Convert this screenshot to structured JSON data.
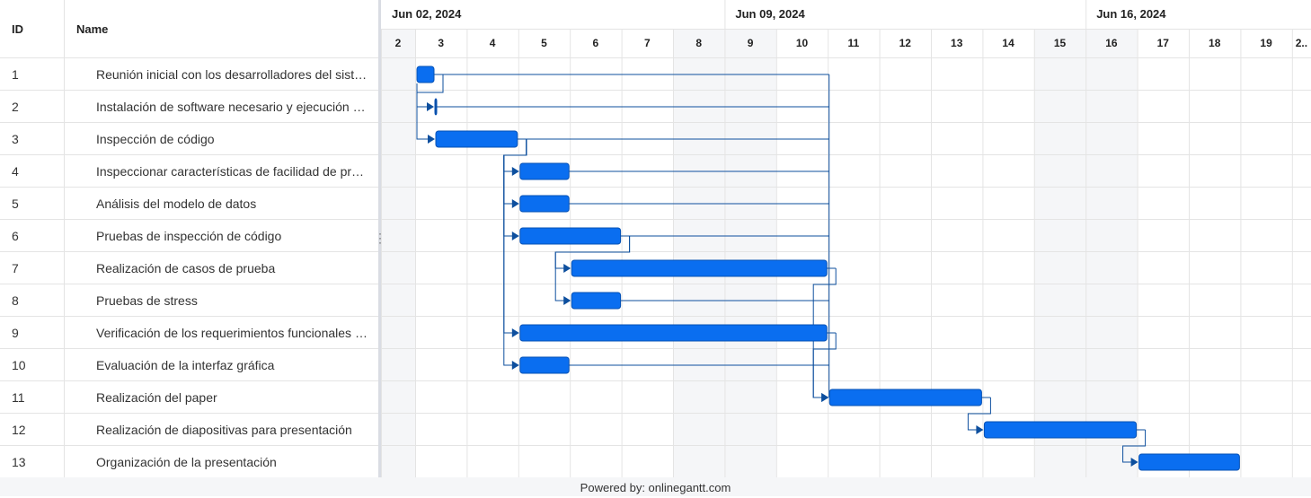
{
  "columns": {
    "id_header": "ID",
    "name_header": "Name"
  },
  "months": [
    {
      "label": "Jun 02, 2024",
      "start_day": 2
    },
    {
      "label": "Jun 09, 2024",
      "start_day": 9
    },
    {
      "label": "Jun 16, 2024",
      "start_day": 16
    }
  ],
  "days": [
    "2",
    "3",
    "4",
    "5",
    "6",
    "7",
    "8",
    "9",
    "10",
    "11",
    "12",
    "13",
    "14",
    "15",
    "16",
    "17",
    "18",
    "19",
    "2.."
  ],
  "weekend_days": [
    2,
    8,
    9,
    15,
    16
  ],
  "tasks": [
    {
      "id": "1",
      "name": "Reunión inicial con los desarrolladores del sistema",
      "start": "2024-06-03",
      "end": "2024-06-03"
    },
    {
      "id": "2",
      "name": "Instalación de software necesario y ejecución del sistema",
      "start": "2024-06-03",
      "end": "2024-06-03"
    },
    {
      "id": "3",
      "name": "Inspección de código",
      "start": "2024-06-03",
      "end": "2024-06-04"
    },
    {
      "id": "4",
      "name": "Inspeccionar características de facilidad de programación",
      "start": "2024-06-05",
      "end": "2024-06-05"
    },
    {
      "id": "5",
      "name": "Análisis del modelo de datos",
      "start": "2024-06-05",
      "end": "2024-06-05"
    },
    {
      "id": "6",
      "name": "Pruebas de inspección de código",
      "start": "2024-06-05",
      "end": "2024-06-06"
    },
    {
      "id": "7",
      "name": "Realización de casos de prueba",
      "start": "2024-06-06",
      "end": "2024-06-10"
    },
    {
      "id": "8",
      "name": "Pruebas de stress",
      "start": "2024-06-06",
      "end": "2024-06-06"
    },
    {
      "id": "9",
      "name": "Verificación de los requerimientos funcionales del sistema",
      "start": "2024-06-05",
      "end": "2024-06-10"
    },
    {
      "id": "10",
      "name": "Evaluación de la interfaz gráfica",
      "start": "2024-06-05",
      "end": "2024-06-05"
    },
    {
      "id": "11",
      "name": "Realización del paper",
      "start": "2024-06-11",
      "end": "2024-06-13"
    },
    {
      "id": "12",
      "name": "Realización de diapositivas para presentación",
      "start": "2024-06-14",
      "end": "2024-06-16"
    },
    {
      "id": "13",
      "name": "Organización de la presentación",
      "start": "2024-06-17",
      "end": "2024-06-18"
    }
  ],
  "dependencies": [
    {
      "from": "1",
      "to": "2"
    },
    {
      "from": "1",
      "to": "3"
    },
    {
      "from": "3",
      "to": "4"
    },
    {
      "from": "3",
      "to": "5"
    },
    {
      "from": "3",
      "to": "6"
    },
    {
      "from": "3",
      "to": "9"
    },
    {
      "from": "3",
      "to": "10"
    },
    {
      "from": "6",
      "to": "7"
    },
    {
      "from": "6",
      "to": "8"
    },
    {
      "from": "7",
      "to": "11"
    },
    {
      "from": "9",
      "to": "11"
    },
    {
      "from": "11",
      "to": "12"
    },
    {
      "from": "12",
      "to": "13"
    }
  ],
  "colors": {
    "bar": "#0a6ef0",
    "bar_border": "#0551b5",
    "link": "#0d4f9e",
    "weekend": "#f5f6f8",
    "grid": "#e4e4e4"
  },
  "footer": {
    "text": "Powered by: onlinegantt.com"
  }
}
